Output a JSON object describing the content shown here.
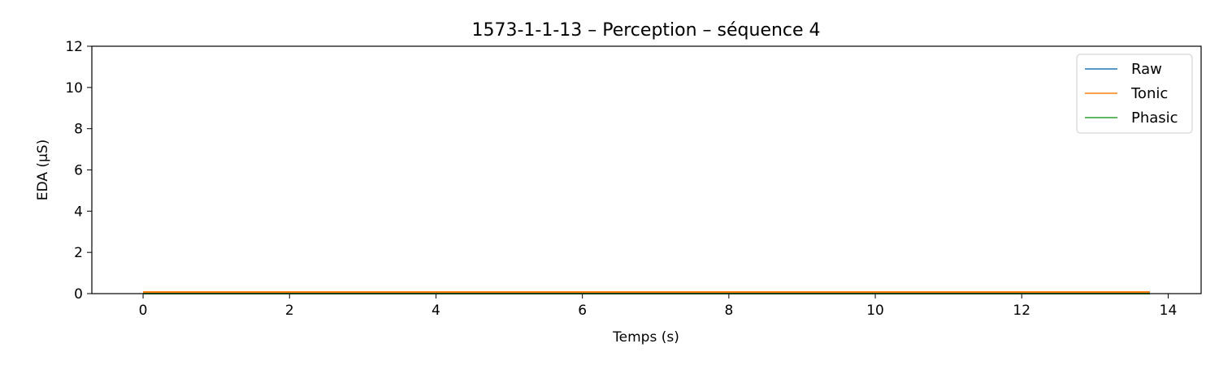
{
  "chart_data": {
    "type": "line",
    "title": "1573-1-1-13 – Perception – séquence 4",
    "xlabel": "Temps (s)",
    "ylabel": "EDA (µS)",
    "xlim": [
      -0.7,
      14.45
    ],
    "ylim": [
      0,
      12
    ],
    "xticks": [
      0,
      2,
      4,
      6,
      8,
      10,
      12,
      14
    ],
    "yticks": [
      0,
      2,
      4,
      6,
      8,
      10,
      12
    ],
    "grid": false,
    "legend_position": "top-right",
    "series": [
      {
        "name": "Raw",
        "color": "#1f77b4",
        "x": [
          0,
          13.75
        ],
        "y": [
          0.08,
          0.08
        ]
      },
      {
        "name": "Tonic",
        "color": "#ff7f0e",
        "x": [
          0,
          13.75
        ],
        "y": [
          0.08,
          0.08
        ]
      },
      {
        "name": "Phasic",
        "color": "#2ca02c",
        "x": [
          0,
          13.75
        ],
        "y": [
          0.0,
          0.0
        ]
      }
    ]
  }
}
